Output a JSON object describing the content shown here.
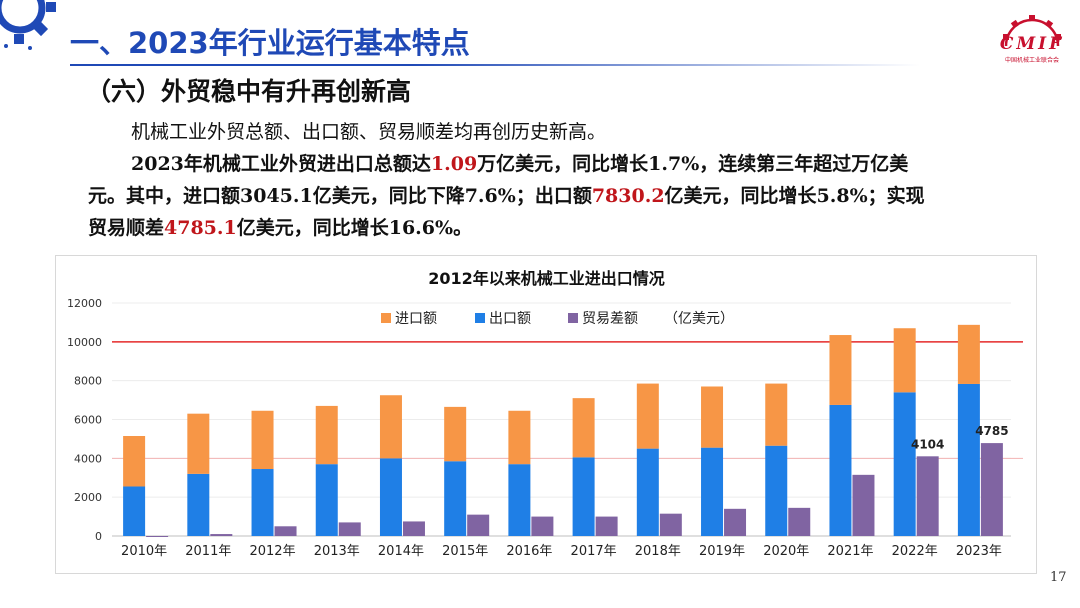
{
  "header": {
    "title": "一、2023年行业运行基本特点",
    "logo_text": "CMIF",
    "logo_subtext": "中国机械工业联合会"
  },
  "section": {
    "subtitle": "（六）外贸稳中有升再创新高"
  },
  "body": {
    "line1": "机械工业外贸总额、出口额、贸易顺差均再创历史新高。",
    "line2_a": "2023年机械工业外贸进出口总额达",
    "line2_b": "1.09",
    "line2_c": "万亿美元，同比增长1.7%，连续第三年超过万亿美",
    "line3_a": "元。其中，进口额3045.1亿美元，同比下降7.6%；出口额",
    "line3_b": "7830.2",
    "line3_c": "亿美元，同比增长5.8%；实现",
    "line4_a": "贸易顺差",
    "line4_b": "4785.1",
    "line4_c": "亿美元，同比增长16.6%。"
  },
  "page_number": "17",
  "colors": {
    "title_blue": "#1f49b6",
    "highlight_red": "#c0161b",
    "import": "#f79646",
    "export": "#1f7fe6",
    "balance": "#8064a2",
    "reference_line": "#e52a2a"
  },
  "chart_data": {
    "type": "bar",
    "title": "2012年以来机械工业进出口情况",
    "unit": "（亿美元）",
    "categories": [
      "2010年",
      "2011年",
      "2012年",
      "2013年",
      "2014年",
      "2015年",
      "2016年",
      "2017年",
      "2018年",
      "2019年",
      "2020年",
      "2021年",
      "2022年",
      "2023年"
    ],
    "ylim": [
      0,
      12000
    ],
    "yticks": [
      "0",
      "2000",
      "4000",
      "6000",
      "8000",
      "10000",
      "12000"
    ],
    "legend_position": "top",
    "reference_line": 10000,
    "series": [
      {
        "name": "进口额",
        "role": "stacked-top",
        "values": [
          2600,
          3100,
          3000,
          3000,
          3250,
          2800,
          2750,
          3050,
          3350,
          3150,
          3200,
          3600,
          3300,
          3045
        ]
      },
      {
        "name": "出口额",
        "role": "stacked-base",
        "values": [
          2550,
          3200,
          3450,
          3700,
          4000,
          3850,
          3700,
          4050,
          4500,
          4550,
          4650,
          6750,
          7400,
          7830
        ]
      },
      {
        "name": "贸易差额",
        "role": "side",
        "values": [
          0,
          100,
          500,
          700,
          750,
          1100,
          1000,
          1000,
          1150,
          1400,
          1450,
          3150,
          4104,
          4785
        ]
      }
    ],
    "data_labels": [
      {
        "series": "贸易差额",
        "category": "2022年",
        "text": "4104"
      },
      {
        "series": "贸易差额",
        "category": "2023年",
        "text": "4785"
      }
    ]
  }
}
